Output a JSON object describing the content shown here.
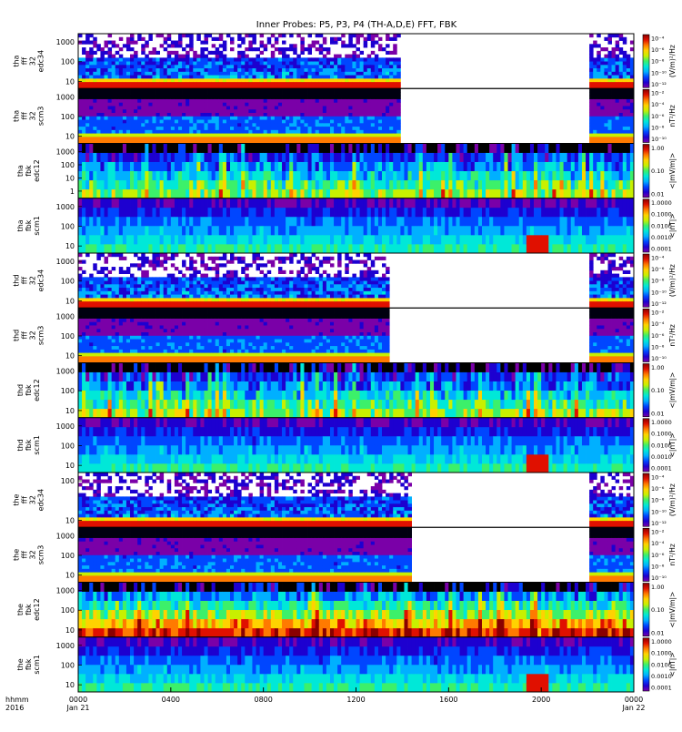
{
  "chart_data": {
    "type": "heatmap",
    "title": "Inner Probes: P5, P3, P4 (TH-A,D,E) FFT, FBK",
    "x_axis": {
      "unit_label": "hhmm",
      "year_label": "2016",
      "range_hours": [
        0,
        24
      ],
      "ticks": [
        {
          "hour": 0,
          "label": "0000",
          "sub": "Jan 21"
        },
        {
          "hour": 4,
          "label": "0400",
          "sub": ""
        },
        {
          "hour": 8,
          "label": "0800",
          "sub": ""
        },
        {
          "hour": 12,
          "label": "1200",
          "sub": ""
        },
        {
          "hour": 16,
          "label": "1600",
          "sub": ""
        },
        {
          "hour": 20,
          "label": "2000",
          "sub": ""
        },
        {
          "hour": 24,
          "label": "0000",
          "sub": "Jan 22"
        }
      ]
    },
    "panels": [
      {
        "probe": "tha",
        "label": [
          "tha",
          "fff",
          "32",
          "edc34"
        ],
        "ticks": [
          "1000",
          "100",
          "10"
        ],
        "cbar_ticks": [
          "10⁻⁴",
          "10⁻⁶",
          "10⁻⁸",
          "10⁻¹⁰",
          "10⁻¹²"
        ],
        "cbar_unit": "(V/m)²/Hz",
        "kind": "fff_e",
        "data_gaps_hours": [
          [
            13.9,
            22.15
          ]
        ],
        "log_fraction_scatter": 0.35
      },
      {
        "probe": "tha",
        "label": [
          "tha",
          "fff",
          "32",
          "scm3"
        ],
        "ticks": [
          "1000",
          "100",
          "10"
        ],
        "cbar_ticks": [
          "10⁻²",
          "10⁻⁴",
          "10⁻⁶",
          "10⁻⁸",
          "10⁻¹⁰"
        ],
        "cbar_unit": "nT²/Hz",
        "kind": "fff_b",
        "data_gaps_hours": [
          [
            13.9,
            22.15
          ]
        ]
      },
      {
        "probe": "tha",
        "label": [
          "tha",
          "fbk",
          "edc12"
        ],
        "ticks": [
          "1000",
          "100",
          "10",
          "1"
        ],
        "cbar_ticks": [
          "1.00",
          "0.10",
          "0.01"
        ],
        "cbar_unit": "<|mV/m|>",
        "kind": "fbk_e",
        "data_gaps_hours": []
      },
      {
        "probe": "tha",
        "label": [
          "tha",
          "fbk",
          "scm1"
        ],
        "ticks": [
          "1000",
          "100",
          "10"
        ],
        "cbar_ticks": [
          "1.0000",
          "0.1000",
          "0.0100",
          "0.0010",
          "0.0001"
        ],
        "cbar_unit": "<|nT|>",
        "kind": "fbk_b",
        "data_gaps_hours": []
      },
      {
        "probe": "thd",
        "label": [
          "thd",
          "fff",
          "32",
          "edc34"
        ],
        "ticks": [
          "1000",
          "100",
          "10"
        ],
        "cbar_ticks": [
          "10⁻⁴",
          "10⁻⁶",
          "10⁻⁸",
          "10⁻¹⁰",
          "10⁻¹²"
        ],
        "cbar_unit": "(V/m)²/Hz",
        "kind": "fff_e",
        "data_gaps_hours": [
          [
            13.5,
            22.15
          ]
        ]
      },
      {
        "probe": "thd",
        "label": [
          "thd",
          "fff",
          "32",
          "scm3"
        ],
        "ticks": [
          "1000",
          "100",
          "10"
        ],
        "cbar_ticks": [
          "10⁻²",
          "10⁻⁴",
          "10⁻⁶",
          "10⁻⁸",
          "10⁻¹⁰"
        ],
        "cbar_unit": "nT²/Hz",
        "kind": "fff_b",
        "data_gaps_hours": [
          [
            13.5,
            22.15
          ]
        ]
      },
      {
        "probe": "thd",
        "label": [
          "thd",
          "fbk",
          "edc12"
        ],
        "ticks": [
          "1000",
          "100",
          "10"
        ],
        "cbar_ticks": [
          "1.00",
          "0.10",
          "0.01"
        ],
        "cbar_unit": "<|mV/m|>",
        "kind": "fbk_e",
        "data_gaps_hours": []
      },
      {
        "probe": "thd",
        "label": [
          "thd",
          "fbk",
          "scm1"
        ],
        "ticks": [
          "1000",
          "100",
          "10"
        ],
        "cbar_ticks": [
          "1.0000",
          "0.1000",
          "0.0100",
          "0.0010",
          "0.0001"
        ],
        "cbar_unit": "<|nT|>",
        "kind": "fbk_b",
        "data_gaps_hours": []
      },
      {
        "probe": "the",
        "label": [
          "the",
          "fff",
          "32",
          "edc34"
        ],
        "ticks": [
          "100",
          "10"
        ],
        "cbar_ticks": [
          "10⁻⁴",
          "10⁻⁶",
          "10⁻⁸",
          "10⁻¹⁰",
          "10⁻¹²"
        ],
        "cbar_unit": "(V/m)²/Hz",
        "kind": "fff_e",
        "data_gaps_hours": [
          [
            14.4,
            22.15
          ]
        ]
      },
      {
        "probe": "the",
        "label": [
          "the",
          "fff",
          "32",
          "scm3"
        ],
        "ticks": [
          "1000",
          "100",
          "10"
        ],
        "cbar_ticks": [
          "10⁻²",
          "10⁻⁴",
          "10⁻⁶",
          "10⁻⁸",
          "10⁻¹⁰"
        ],
        "cbar_unit": "nT²/Hz",
        "kind": "fff_b",
        "data_gaps_hours": [
          [
            14.4,
            22.15
          ]
        ]
      },
      {
        "probe": "the",
        "label": [
          "the",
          "fbk",
          "edc12"
        ],
        "ticks": [
          "1000",
          "100",
          "10"
        ],
        "cbar_ticks": [
          "1.00",
          "0.10",
          "0.01"
        ],
        "cbar_unit": "<|mV/m|>",
        "kind": "fbk_e",
        "data_gaps_hours": []
      },
      {
        "probe": "the",
        "label": [
          "the",
          "fbk",
          "scm1"
        ],
        "ticks": [
          "1000",
          "100",
          "10"
        ],
        "cbar_ticks": [
          "1.0000",
          "0.1000",
          "0.0100",
          "0.0010",
          "0.0001"
        ],
        "cbar_unit": "<|nT|>",
        "kind": "fbk_b",
        "data_gaps_hours": []
      }
    ],
    "colormap": [
      "#7a00a8",
      "#1d00d0",
      "#0046ff",
      "#00b0ff",
      "#00e8d8",
      "#3cf06a",
      "#c8f000",
      "#ffd200",
      "#ff7a00",
      "#e01000",
      "#8a0000"
    ],
    "grid": false,
    "legend": "colorbars-right"
  }
}
